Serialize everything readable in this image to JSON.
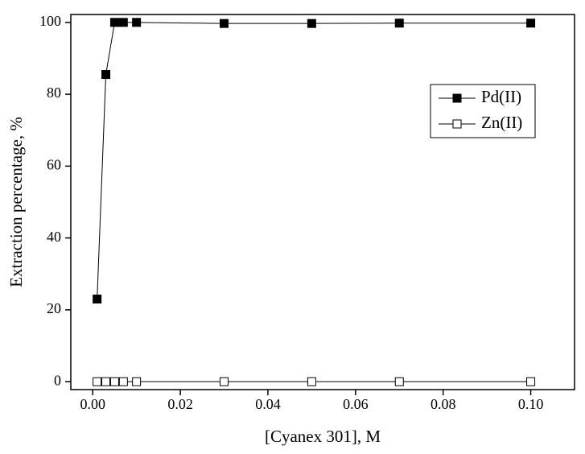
{
  "chart_data": {
    "type": "line",
    "x_label": "[Cyanex 301], M",
    "y_label": "Extraction percentage, %",
    "xlim": [
      -0.005,
      0.11
    ],
    "ylim": [
      -2.2,
      102.2
    ],
    "xticks": [
      {
        "value": 0,
        "label": "0.00"
      },
      0.02,
      0.04,
      0.06,
      0.08,
      {
        "value": 0.1,
        "label": "0.10"
      }
    ],
    "yticks": [
      0,
      20,
      40,
      60,
      80,
      100
    ],
    "x": [
      0.001,
      0.003,
      0.005,
      0.007,
      0.01,
      0.03,
      0.05,
      0.07,
      0.1
    ],
    "series": [
      {
        "name": "Pd(II)",
        "color": "#000000",
        "filled": true,
        "values": [
          23,
          85.5,
          100,
          100,
          100,
          99.7,
          99.7,
          99.8,
          99.8
        ]
      },
      {
        "name": "Zn(II)",
        "color": "#000000",
        "filled": false,
        "values": [
          0,
          0,
          0,
          0,
          0,
          0,
          0,
          0,
          0
        ]
      }
    ],
    "legend": "upper right"
  }
}
